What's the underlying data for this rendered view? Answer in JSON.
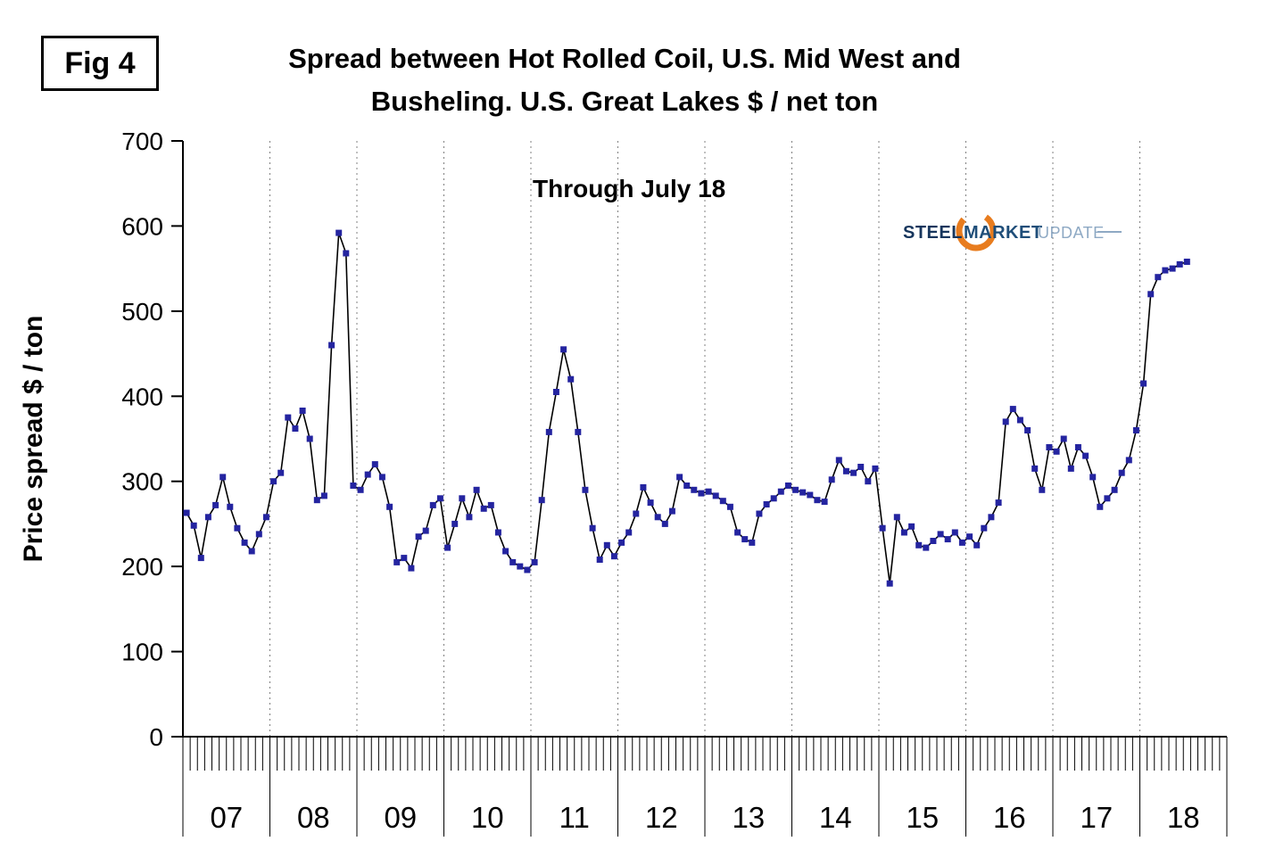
{
  "fig_label": "Fig 4",
  "title": {
    "line1": "Spread between Hot Rolled Coil, U.S. Mid West and",
    "line2": "Busheling. U.S. Great Lakes  $ / net ton"
  },
  "annotation": "Through July 18",
  "y_axis_label": "Price spread $ / ton",
  "logo": {
    "steel": "STEEL",
    "market": "MARKET",
    "update": "UPDATE"
  },
  "colors": {
    "marker": "#2424A0",
    "line": "#000000",
    "gridline": "#808080",
    "logo_orange": "#E87C1E",
    "logo_navy": "#17365D",
    "logo_blue": "#1F4E79",
    "logo_light": "#8EA9C4"
  },
  "chart_data": {
    "type": "line",
    "title": "Spread between Hot Rolled Coil, U.S. Mid West and Busheling. U.S. Great Lakes $ / net ton",
    "subtitle": "Through July 18",
    "xlabel": "",
    "ylabel": "Price spread $ / ton",
    "ylim": [
      0,
      700
    ],
    "y_ticks": [
      0,
      100,
      200,
      300,
      400,
      500,
      600,
      700
    ],
    "x_year_labels": [
      "07",
      "08",
      "09",
      "10",
      "11",
      "12",
      "13",
      "14",
      "15",
      "16",
      "17",
      "18"
    ],
    "months_per_year": 12,
    "grid": "vertical-dashed-year-boundaries",
    "legend": "none",
    "marker": "square",
    "values": [
      263,
      248,
      210,
      258,
      272,
      305,
      270,
      245,
      228,
      218,
      238,
      258,
      300,
      310,
      375,
      362,
      383,
      350,
      278,
      283,
      460,
      592,
      568,
      295,
      290,
      308,
      320,
      305,
      270,
      205,
      210,
      198,
      235,
      242,
      272,
      280,
      222,
      250,
      280,
      258,
      290,
      268,
      272,
      240,
      218,
      205,
      200,
      196,
      205,
      278,
      358,
      405,
      455,
      420,
      358,
      290,
      245,
      208,
      225,
      212,
      228,
      240,
      262,
      293,
      275,
      258,
      250,
      265,
      305,
      295,
      290,
      286,
      288,
      283,
      277,
      270,
      240,
      232,
      228,
      262,
      273,
      280,
      288,
      295,
      290,
      287,
      284,
      278,
      276,
      302,
      325,
      312,
      310,
      317,
      300,
      315,
      245,
      180,
      258,
      240,
      247,
      225,
      222,
      230,
      238,
      232,
      240,
      228,
      235,
      225,
      245,
      258,
      275,
      370,
      385,
      372,
      360,
      315,
      290,
      340,
      335,
      350,
      315,
      340,
      330,
      305,
      270,
      280,
      290,
      310,
      325,
      360,
      415,
      520,
      540,
      548,
      550,
      555,
      558
    ]
  }
}
